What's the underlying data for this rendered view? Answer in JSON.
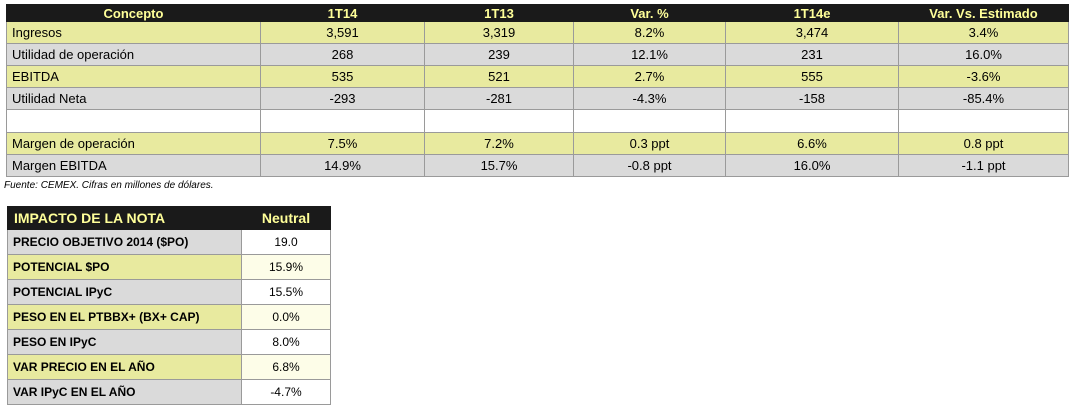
{
  "fin": {
    "headers": [
      "Concepto",
      "1T14",
      "1T13",
      "Var. %",
      "1T14e",
      "Var. Vs. Estimado"
    ],
    "rows": [
      {
        "label": "Ingresos",
        "values": [
          "3,591",
          "3,319",
          "8.2%",
          "3,474",
          "3.4%"
        ]
      },
      {
        "label": "Utilidad de operación",
        "values": [
          "268",
          "239",
          "12.1%",
          "231",
          "16.0%"
        ]
      },
      {
        "label": "EBITDA",
        "values": [
          "535",
          "521",
          "2.7%",
          "555",
          "-3.6%"
        ]
      },
      {
        "label": "Utilidad Neta",
        "values": [
          "-293",
          "-281",
          "-4.3%",
          "-158",
          "-85.4%"
        ]
      },
      {
        "label": "",
        "values": [
          "",
          "",
          "",
          "",
          ""
        ]
      },
      {
        "label": "Margen de operación",
        "values": [
          "7.5%",
          "7.2%",
          "0.3 ppt",
          "6.6%",
          "0.8 ppt"
        ]
      },
      {
        "label": "Margen EBITDA",
        "values": [
          "14.9%",
          "15.7%",
          "-0.8 ppt",
          "16.0%",
          "-1.1 ppt"
        ]
      }
    ]
  },
  "source_note": "Fuente: CEMEX. Cifras en millones de dólares.",
  "impact": {
    "title": "IMPACTO DE LA NOTA",
    "rating": "Neutral",
    "rows": [
      {
        "label": "PRECIO OBJETIVO 2014 ($PO)",
        "value": "19.0"
      },
      {
        "label": "POTENCIAL $PO",
        "value": "15.9%"
      },
      {
        "label": "POTENCIAL IPyC",
        "value": "15.5%"
      },
      {
        "label": "PESO EN EL PTBBX+ (BX+ CAP)",
        "value": "0.0%"
      },
      {
        "label": "PESO EN IPyC",
        "value": "8.0%"
      },
      {
        "label": "VAR PRECIO EN EL AÑO",
        "value": "6.8%"
      },
      {
        "label": "VAR IPyC EN EL AÑO",
        "value": "-4.7%"
      }
    ]
  },
  "colors": {
    "header_bg": "#1a1a1a",
    "header_text": "#ffff99",
    "row_yellow": "#e8ea9f",
    "row_gray": "#dadada"
  }
}
